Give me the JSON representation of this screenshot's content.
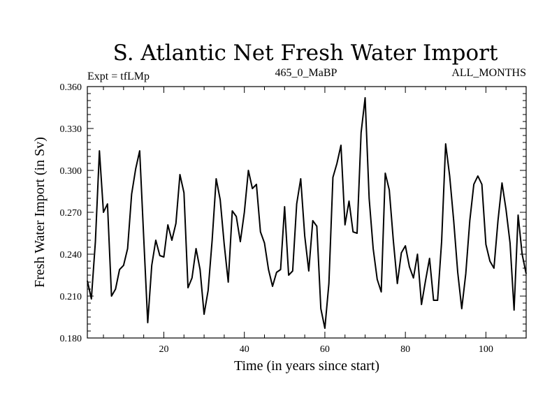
{
  "chart_data": {
    "type": "line",
    "title": "S. Atlantic Net Fresh Water Import",
    "left_subtitle": "Expt = tfLMp",
    "center_subtitle": "465_0_MaBP",
    "right_subtitle": "ALL_MONTHS",
    "xlabel": "Time (in years since start)",
    "ylabel": "Fresh Water Import (in Sv)",
    "xlim": [
      1,
      110
    ],
    "ylim": [
      0.18,
      0.36
    ],
    "x_ticks": [
      20,
      40,
      60,
      80,
      100
    ],
    "x_tick_labels": [
      "20",
      "40",
      "60",
      "80",
      "100"
    ],
    "y_ticks": [
      0.18,
      0.21,
      0.24,
      0.27,
      0.3,
      0.33,
      0.36
    ],
    "y_tick_labels": [
      "0.180",
      "0.210",
      "0.240",
      "0.270",
      "0.300",
      "0.330",
      "0.360"
    ],
    "series": [
      {
        "name": "Net Fresh Water Import",
        "x": [
          1,
          2,
          3,
          4,
          5,
          6,
          7,
          8,
          9,
          10,
          11,
          12,
          13,
          14,
          15,
          16,
          17,
          18,
          19,
          20,
          21,
          22,
          23,
          24,
          25,
          26,
          27,
          28,
          29,
          30,
          31,
          32,
          33,
          34,
          35,
          36,
          37,
          38,
          39,
          40,
          41,
          42,
          43,
          44,
          45,
          46,
          47,
          48,
          49,
          50,
          51,
          52,
          53,
          54,
          55,
          56,
          57,
          58,
          59,
          60,
          61,
          62,
          63,
          64,
          65,
          66,
          67,
          68,
          69,
          70,
          71,
          72,
          73,
          74,
          75,
          76,
          77,
          78,
          79,
          80,
          81,
          82,
          83,
          84,
          85,
          86,
          87,
          88,
          89,
          90,
          91,
          92,
          93,
          94,
          95,
          96,
          97,
          98,
          99,
          100,
          101,
          102,
          103,
          104,
          105,
          106,
          107,
          108,
          109,
          110
        ],
        "values": [
          0.221,
          0.208,
          0.249,
          0.314,
          0.27,
          0.276,
          0.21,
          0.215,
          0.229,
          0.232,
          0.244,
          0.283,
          0.301,
          0.314,
          0.252,
          0.191,
          0.232,
          0.25,
          0.239,
          0.238,
          0.261,
          0.25,
          0.262,
          0.297,
          0.284,
          0.216,
          0.223,
          0.244,
          0.229,
          0.197,
          0.214,
          0.25,
          0.294,
          0.279,
          0.247,
          0.22,
          0.271,
          0.267,
          0.249,
          0.27,
          0.3,
          0.287,
          0.29,
          0.256,
          0.248,
          0.229,
          0.217,
          0.227,
          0.229,
          0.274,
          0.225,
          0.228,
          0.276,
          0.294,
          0.253,
          0.228,
          0.264,
          0.26,
          0.201,
          0.187,
          0.219,
          0.295,
          0.305,
          0.318,
          0.261,
          0.278,
          0.256,
          0.255,
          0.327,
          0.352,
          0.28,
          0.244,
          0.222,
          0.213,
          0.298,
          0.286,
          0.25,
          0.219,
          0.241,
          0.246,
          0.231,
          0.223,
          0.24,
          0.204,
          0.221,
          0.237,
          0.207,
          0.207,
          0.249,
          0.319,
          0.296,
          0.264,
          0.227,
          0.201,
          0.226,
          0.264,
          0.29,
          0.296,
          0.29,
          0.247,
          0.235,
          0.23,
          0.264,
          0.291,
          0.272,
          0.248,
          0.2,
          0.268,
          0.24,
          0.226
        ]
      }
    ]
  }
}
